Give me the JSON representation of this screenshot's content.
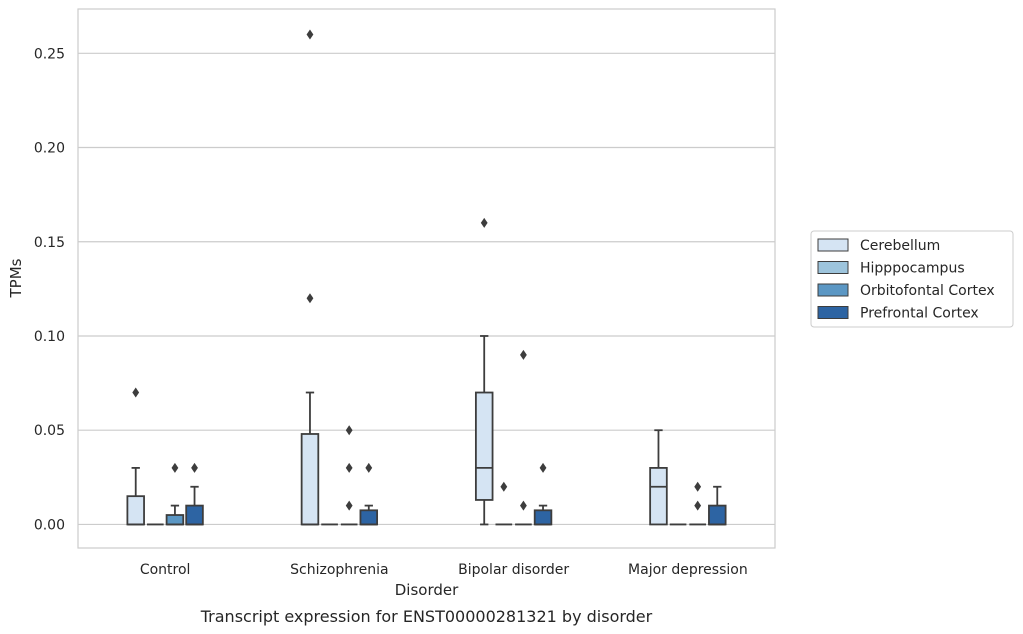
{
  "chart_data": {
    "type": "box",
    "caption": "Transcript expression for ENST00000281321 by disorder",
    "xlabel": "Disorder",
    "ylabel": "TPMs",
    "categories": [
      "Control",
      "Schizophrenia",
      "Bipolar disorder",
      "Major depression"
    ],
    "ylim": [
      -0.0125,
      0.2735
    ],
    "yticks": [
      0.0,
      0.05,
      0.1,
      0.15,
      0.2,
      0.25
    ],
    "ytick_labels": [
      "0.00",
      "0.05",
      "0.10",
      "0.15",
      "0.20",
      "0.25"
    ],
    "grid": true,
    "legend_position": "right",
    "series": [
      {
        "name": "Cerebellum",
        "color": "#d5e4f3",
        "boxes": [
          {
            "q1": 0.0,
            "median": 0.0,
            "q3": 0.015,
            "whisker_low": 0.0,
            "whisker_high": 0.03,
            "outliers": [
              0.07
            ]
          },
          {
            "q1": 0.0,
            "median": 0.0,
            "q3": 0.048,
            "whisker_low": 0.0,
            "whisker_high": 0.07,
            "outliers": [
              0.12,
              0.26
            ]
          },
          {
            "q1": 0.013,
            "median": 0.03,
            "q3": 0.07,
            "whisker_low": 0.0,
            "whisker_high": 0.1,
            "outliers": [
              0.16
            ]
          },
          {
            "q1": 0.0,
            "median": 0.02,
            "q3": 0.03,
            "whisker_low": 0.0,
            "whisker_high": 0.05,
            "outliers": []
          }
        ]
      },
      {
        "name": "Hipppocampus",
        "color": "#9dc4dc",
        "boxes": [
          {
            "q1": 0.0,
            "median": 0.0,
            "q3": 0.0,
            "whisker_low": 0.0,
            "whisker_high": 0.0,
            "outliers": []
          },
          {
            "q1": 0.0,
            "median": 0.0,
            "q3": 0.0,
            "whisker_low": 0.0,
            "whisker_high": 0.0,
            "outliers": []
          },
          {
            "q1": 0.0,
            "median": 0.0,
            "q3": 0.0,
            "whisker_low": 0.0,
            "whisker_high": 0.0,
            "outliers": [
              0.02
            ]
          },
          {
            "q1": 0.0,
            "median": 0.0,
            "q3": 0.0,
            "whisker_low": 0.0,
            "whisker_high": 0.0,
            "outliers": []
          }
        ]
      },
      {
        "name": "Orbitofontal Cortex",
        "color": "#5b97c4",
        "boxes": [
          {
            "q1": 0.0,
            "median": 0.0,
            "q3": 0.005,
            "whisker_low": 0.0,
            "whisker_high": 0.01,
            "outliers": [
              0.03
            ]
          },
          {
            "q1": 0.0,
            "median": 0.0,
            "q3": 0.0,
            "whisker_low": 0.0,
            "whisker_high": 0.0,
            "outliers": [
              0.01,
              0.03,
              0.05
            ]
          },
          {
            "q1": 0.0,
            "median": 0.0,
            "q3": 0.0,
            "whisker_low": 0.0,
            "whisker_high": 0.0,
            "outliers": [
              0.01,
              0.09
            ]
          },
          {
            "q1": 0.0,
            "median": 0.0,
            "q3": 0.0,
            "whisker_low": 0.0,
            "whisker_high": 0.0,
            "outliers": [
              0.01,
              0.02
            ]
          }
        ]
      },
      {
        "name": "Prefrontal Cortex",
        "color": "#2d64a3",
        "boxes": [
          {
            "q1": 0.0,
            "median": 0.0,
            "q3": 0.01,
            "whisker_low": 0.0,
            "whisker_high": 0.02,
            "outliers": [
              0.03
            ]
          },
          {
            "q1": 0.0,
            "median": 0.0,
            "q3": 0.0075,
            "whisker_low": 0.0,
            "whisker_high": 0.01,
            "outliers": [
              0.03
            ]
          },
          {
            "q1": 0.0,
            "median": 0.0,
            "q3": 0.0075,
            "whisker_low": 0.0,
            "whisker_high": 0.01,
            "outliers": [
              0.03
            ]
          },
          {
            "q1": 0.0,
            "median": 0.0,
            "q3": 0.01,
            "whisker_low": 0.0,
            "whisker_high": 0.02,
            "outliers": []
          }
        ]
      }
    ]
  }
}
